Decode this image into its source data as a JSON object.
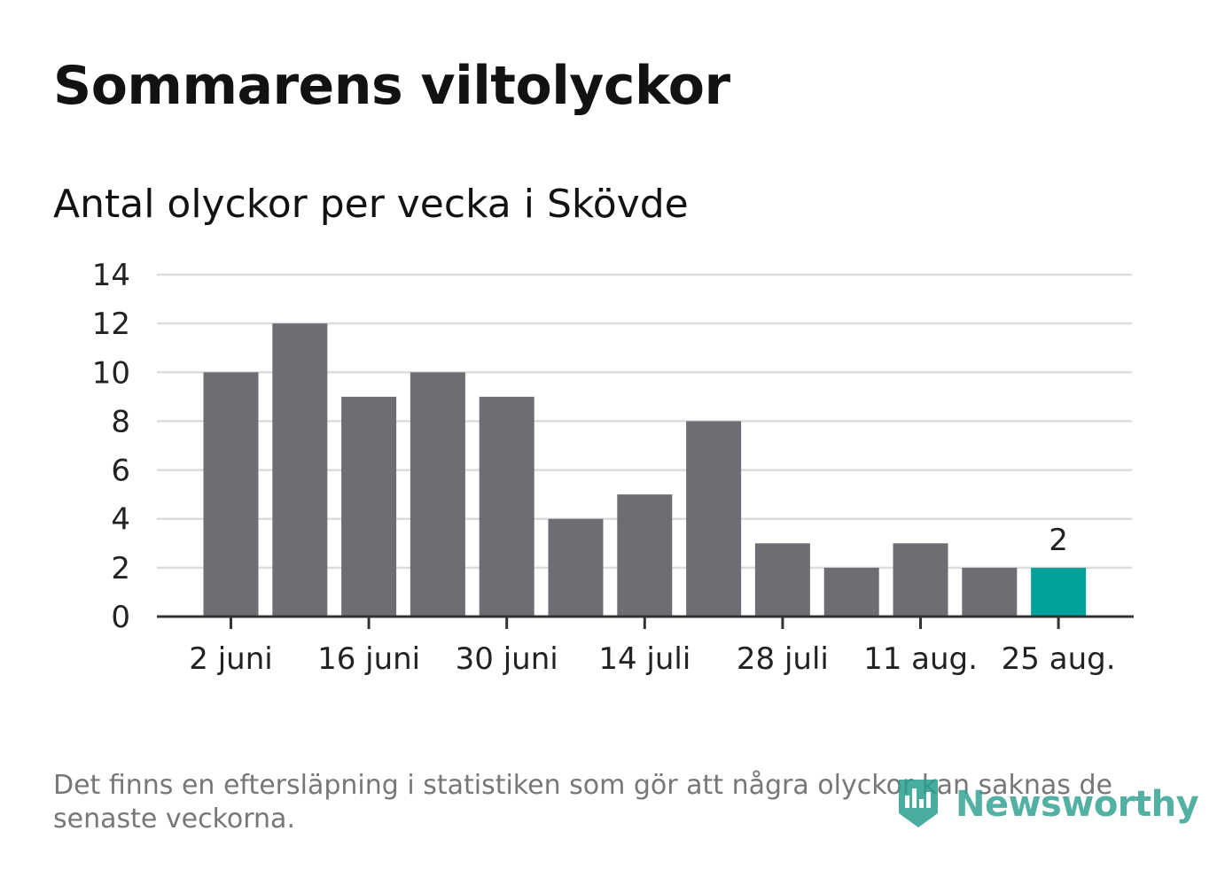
{
  "header": {
    "title": "Sommarens viltolyckor",
    "subtitle": "Antal olyckor per vecka i Skövde"
  },
  "footer": {
    "note": "Det finns en eftersläpning i statistiken som gör att några olyckor kan saknas de senaste veckorna.",
    "brand": "Newsworthy"
  },
  "colors": {
    "bar": "#6e6d73",
    "highlight": "#00a19a",
    "grid": "#dcdcdc",
    "axis": "#333333",
    "brand": "#2a9e8f"
  },
  "icons": {
    "brand_logo": "newsworthy-logo-icon"
  },
  "chart_data": {
    "type": "bar",
    "title": "Antal olyckor per vecka i Skövde",
    "xlabel": "",
    "ylabel": "",
    "ylim": [
      0,
      14
    ],
    "yticks": [
      "0",
      "2",
      "4",
      "6",
      "8",
      "10",
      "12",
      "14"
    ],
    "grid": true,
    "legend": "none",
    "x_tick_labels": [
      {
        "label": "2 juni",
        "index": 0
      },
      {
        "label": "16 juni",
        "index": 2
      },
      {
        "label": "30 juni",
        "index": 4
      },
      {
        "label": "14 juli",
        "index": 6
      },
      {
        "label": "28 juli",
        "index": 8
      },
      {
        "label": "11 aug.",
        "index": 10
      },
      {
        "label": "25 aug.",
        "index": 12
      }
    ],
    "values": [
      10,
      12,
      9,
      10,
      9,
      4,
      5,
      8,
      3,
      2,
      3,
      2,
      2
    ],
    "highlight_index": 12,
    "data_labels": [
      {
        "index": 12,
        "label": "2"
      }
    ]
  }
}
